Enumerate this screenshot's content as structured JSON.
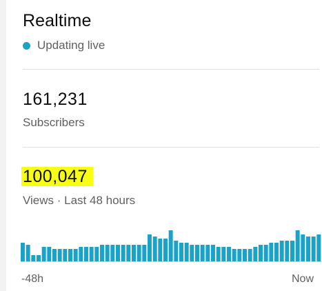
{
  "realtime": {
    "title": "Realtime",
    "live_status": "Updating live"
  },
  "subscribers": {
    "value": "161,231",
    "label": "Subscribers"
  },
  "views": {
    "value": "100,047",
    "label": "Views · Last 48 hours"
  },
  "chart_data": {
    "type": "bar",
    "x_start_label": "-48h",
    "x_end_label": "Now",
    "values": [
      9,
      8,
      3,
      3,
      7,
      7,
      6,
      6,
      6,
      6,
      6,
      7,
      7,
      7,
      7,
      8,
      8,
      8,
      8,
      8,
      8,
      8,
      8,
      8,
      13,
      12,
      11,
      11,
      15,
      10,
      9,
      9,
      8,
      8,
      8,
      8,
      8,
      7,
      7,
      7,
      6,
      6,
      6,
      6,
      7,
      8,
      8,
      9,
      9,
      10,
      10,
      10,
      15,
      13,
      12,
      12,
      13
    ]
  },
  "colors": {
    "accent": "#1aa3c7",
    "highlight": "#f9ff11"
  }
}
